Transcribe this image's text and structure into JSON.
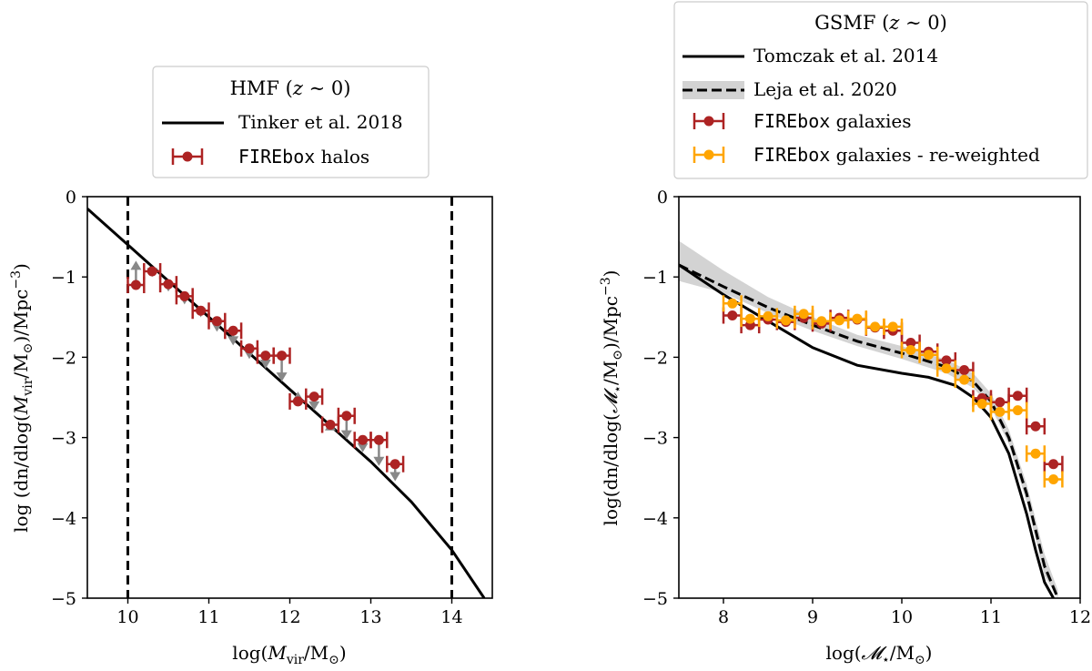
{
  "chart_data": [
    {
      "type": "scatter",
      "panel": "HMF",
      "xlabel": "log(M_vir/M⊙)",
      "ylabel": "log (dn/dlog(M_vir/M⊙)/Mpc⁻³)",
      "xlim": [
        9.5,
        14.5
      ],
      "ylim": [
        -5,
        0
      ],
      "xticks": [
        10,
        11,
        12,
        13,
        14
      ],
      "yticks": [
        0,
        -1,
        -2,
        -3,
        -4,
        -5
      ],
      "vlines": [
        10,
        14
      ],
      "legend": {
        "title": "HMF (z ∼ 0)",
        "entries": [
          {
            "label": "Tinker et al. 2018",
            "style": "solid-line"
          },
          {
            "label_mono": "FIREbox",
            "label": " halos",
            "style": "errorbar"
          }
        ]
      },
      "series": [
        {
          "name": "Tinker et al. 2018",
          "x": [
            9.5,
            10.0,
            10.5,
            11.0,
            11.5,
            12.0,
            12.5,
            13.0,
            13.5,
            14.0,
            14.4
          ],
          "y": [
            -0.15,
            -0.6,
            -1.05,
            -1.5,
            -1.95,
            -2.4,
            -2.85,
            -3.3,
            -3.8,
            -4.4,
            -5.0
          ]
        },
        {
          "name": "FIREbox halos",
          "x": [
            10.1,
            10.3,
            10.5,
            10.7,
            10.9,
            11.1,
            11.3,
            11.5,
            11.7,
            11.9,
            12.1,
            12.3,
            12.5,
            12.7,
            12.9,
            13.1,
            13.3
          ],
          "y": [
            -1.1,
            -0.93,
            -1.09,
            -1.24,
            -1.42,
            -1.55,
            -1.67,
            -1.89,
            -1.98,
            -1.98,
            -2.55,
            -2.49,
            -2.84,
            -2.73,
            -3.03,
            -3.03,
            -3.33
          ],
          "xerr": 0.1
        },
        {
          "name": "corrections",
          "x": [
            10.1,
            10.3,
            10.5,
            10.7,
            10.9,
            11.1,
            11.3,
            11.5,
            11.7,
            11.9,
            12.1,
            12.3,
            12.5,
            12.7,
            12.9,
            13.1,
            13.3
          ],
          "y_to": [
            -0.82,
            -0.98,
            -1.16,
            -1.32,
            -1.48,
            -1.66,
            -1.83,
            -2.0,
            -2.12,
            -2.28,
            -2.45,
            -2.64,
            -2.82,
            -3.0,
            -3.16,
            -3.33,
            -3.52
          ]
        }
      ]
    },
    {
      "type": "scatter",
      "panel": "GSMF",
      "xlabel": "log(𝓜⋆/M⊙)",
      "ylabel": "log(dn/dlog(𝓜⋆/M⊙)/Mpc⁻³)",
      "xlim": [
        7.5,
        12
      ],
      "ylim": [
        -5,
        0
      ],
      "xticks": [
        8,
        9,
        10,
        11,
        12
      ],
      "yticks": [
        0,
        -1,
        -2,
        -3,
        -4,
        -5
      ],
      "legend": {
        "title": "GSMF (z ∼ 0)",
        "entries": [
          {
            "label": "Tomczak et al. 2014",
            "style": "solid-line"
          },
          {
            "label": "Leja et al. 2020",
            "style": "dashed-band"
          },
          {
            "label_mono": "FIREbox",
            "label": " galaxies",
            "style": "errorbar-red"
          },
          {
            "label_mono": "FIREbox",
            "label": " galaxies - re-weighted",
            "style": "errorbar-orange"
          }
        ]
      },
      "series": [
        {
          "name": "Tomczak et al. 2014",
          "x": [
            7.5,
            8.0,
            8.5,
            9.0,
            9.5,
            10.0,
            10.3,
            10.6,
            10.8,
            11.0,
            11.2,
            11.4,
            11.5,
            11.6,
            11.7
          ],
          "y": [
            -0.85,
            -1.22,
            -1.55,
            -1.88,
            -2.1,
            -2.2,
            -2.25,
            -2.35,
            -2.5,
            -2.75,
            -3.2,
            -3.95,
            -4.4,
            -4.8,
            -5.0
          ]
        },
        {
          "name": "Leja et al. 2020",
          "x": [
            7.5,
            8.0,
            8.5,
            9.0,
            9.5,
            10.0,
            10.5,
            10.8,
            11.0,
            11.2,
            11.4,
            11.6,
            11.75
          ],
          "y": [
            -0.85,
            -1.12,
            -1.38,
            -1.6,
            -1.8,
            -1.95,
            -2.12,
            -2.3,
            -2.55,
            -3.0,
            -3.7,
            -4.6,
            -5.0
          ],
          "band_lo": [
            -1.05,
            -1.2,
            -1.45,
            -1.67,
            -1.86,
            -2.02,
            -2.2,
            -2.38,
            -2.62,
            -3.08,
            -3.8,
            -4.72,
            -5.0
          ],
          "band_hi": [
            -0.55,
            -0.92,
            -1.25,
            -1.5,
            -1.72,
            -1.86,
            -2.03,
            -2.2,
            -2.45,
            -2.9,
            -3.58,
            -4.45,
            -4.9
          ]
        },
        {
          "name": "FIREbox galaxies",
          "x": [
            8.1,
            8.3,
            8.5,
            8.7,
            8.9,
            9.1,
            9.3,
            9.5,
            9.7,
            9.9,
            10.1,
            10.3,
            10.5,
            10.7,
            10.9,
            11.1,
            11.3,
            11.5,
            11.7
          ],
          "y": [
            -1.48,
            -1.6,
            -1.53,
            -1.56,
            -1.51,
            -1.58,
            -1.51,
            -1.53,
            -1.63,
            -1.67,
            -1.82,
            -1.93,
            -2.04,
            -2.16,
            -2.51,
            -2.56,
            -2.48,
            -2.86,
            -3.33
          ],
          "xerr": 0.1
        },
        {
          "name": "FIREbox galaxies - re-weighted",
          "x": [
            8.1,
            8.3,
            8.5,
            8.7,
            8.9,
            9.1,
            9.3,
            9.5,
            9.7,
            9.9,
            10.1,
            10.3,
            10.5,
            10.7,
            10.9,
            11.1,
            11.3,
            11.5,
            11.7
          ],
          "y": [
            -1.33,
            -1.52,
            -1.49,
            -1.54,
            -1.46,
            -1.55,
            -1.54,
            -1.52,
            -1.62,
            -1.62,
            -1.91,
            -1.97,
            -2.14,
            -2.28,
            -2.58,
            -2.68,
            -2.66,
            -3.2,
            -3.52
          ],
          "xerr": 0.1
        }
      ]
    }
  ],
  "colors": {
    "firebox_red": "#ad2323",
    "firebox_orange": "#ffa500",
    "arrow_gray": "#888888",
    "band_gray": "#d3d3d3"
  }
}
